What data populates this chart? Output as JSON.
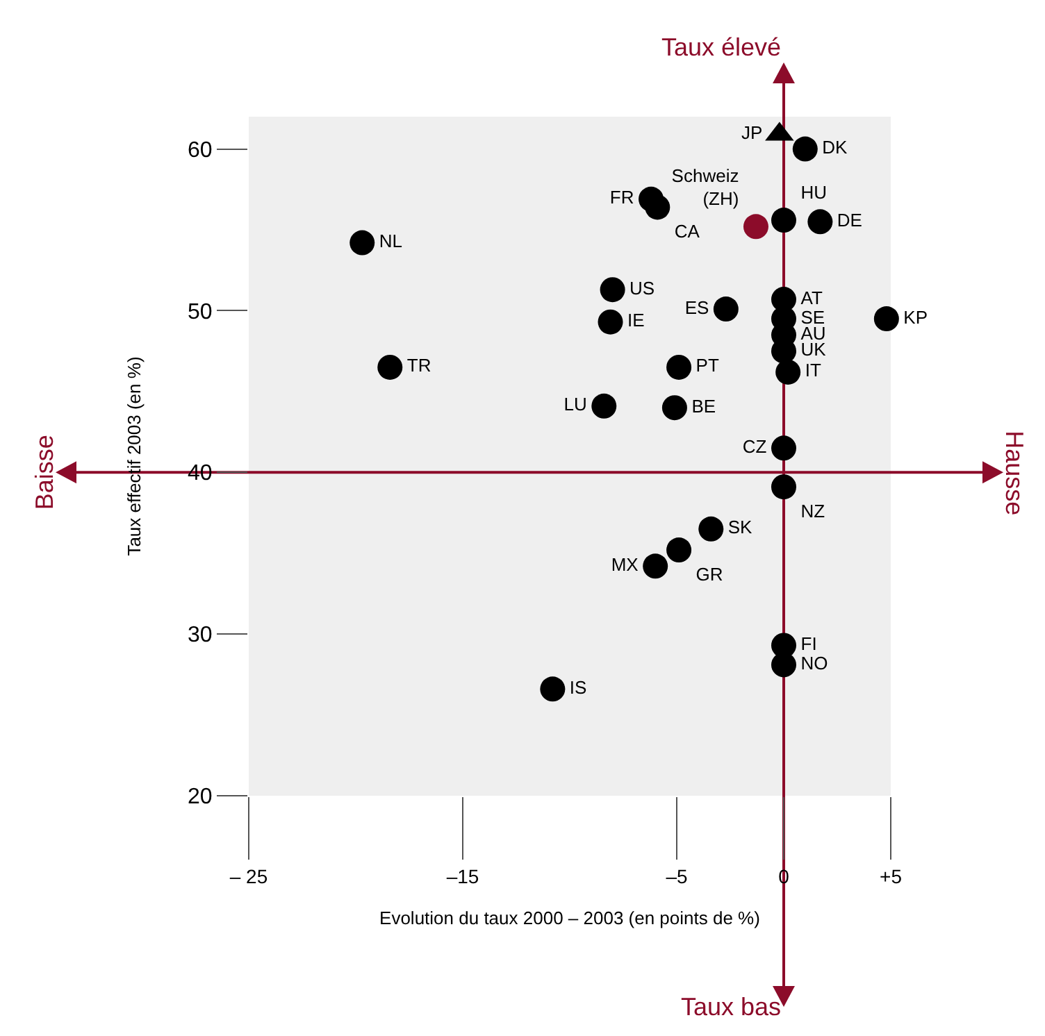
{
  "chart_data": {
    "type": "scatter",
    "xlabel": "Evolution du taux 2000 – 2003 (en points de %)",
    "ylabel": "Taux effectif 2003 (en %)",
    "xlim": [
      -25,
      5
    ],
    "ylim": [
      20,
      62
    ],
    "xticks": [
      {
        "value": -25,
        "label": "– 25"
      },
      {
        "value": -15,
        "label": "–15"
      },
      {
        "value": -5,
        "label": "–5"
      },
      0,
      {
        "value": 5,
        "label": "+5"
      }
    ],
    "yticks": [
      20,
      30,
      40,
      50,
      60
    ],
    "grid": false,
    "legend": false,
    "marker": "circle",
    "ref_lines": [
      {
        "axis": "x",
        "value": 0,
        "color": "#8c0c2a"
      },
      {
        "axis": "y",
        "value": 40,
        "color": "#8c0c2a"
      }
    ],
    "annotations": [
      "Taux élevé",
      "Taux bas",
      "Baisse",
      "Hausse"
    ],
    "series": [
      {
        "color": "#000000",
        "x": [
          1,
          -6.2,
          -5.9,
          0,
          1.7,
          -19.7,
          -8.0,
          -2.7,
          0,
          0,
          4.8,
          -8.1,
          0,
          0,
          -18.4,
          -4.9,
          0.2,
          -8.4,
          -5.1,
          0,
          0,
          -3.4,
          -4.9,
          -6.0,
          0,
          0,
          -10.8
        ],
        "values": [
          60.0,
          56.9,
          56.4,
          55.6,
          55.5,
          54.2,
          51.3,
          50.1,
          50.7,
          49.5,
          49.5,
          49.3,
          48.5,
          47.5,
          46.5,
          46.5,
          46.2,
          44.1,
          44.0,
          41.5,
          39.1,
          36.5,
          35.2,
          34.2,
          29.3,
          28.1,
          26.6
        ],
        "value_labels": [
          "DK",
          "FR",
          "CA",
          "HU",
          "DE",
          "NL",
          "US",
          "ES",
          "AT",
          "SE",
          "KP",
          "IE",
          "AU",
          "UK",
          "TR",
          "PT",
          "IT",
          "LU",
          "BE",
          "CZ",
          "NZ",
          "SK",
          "GR",
          "MX",
          "FI",
          "NO",
          "IS"
        ]
      },
      {
        "color": "#000000",
        "marker": "triangle",
        "x": [
          -0.2
        ],
        "values": [
          60.9
        ],
        "value_labels": [
          "JP"
        ]
      },
      {
        "name": "Schweiz (ZH)",
        "color": "#8c0c2a",
        "x": [
          -1.3
        ],
        "values": [
          55.2
        ]
      }
    ]
  }
}
